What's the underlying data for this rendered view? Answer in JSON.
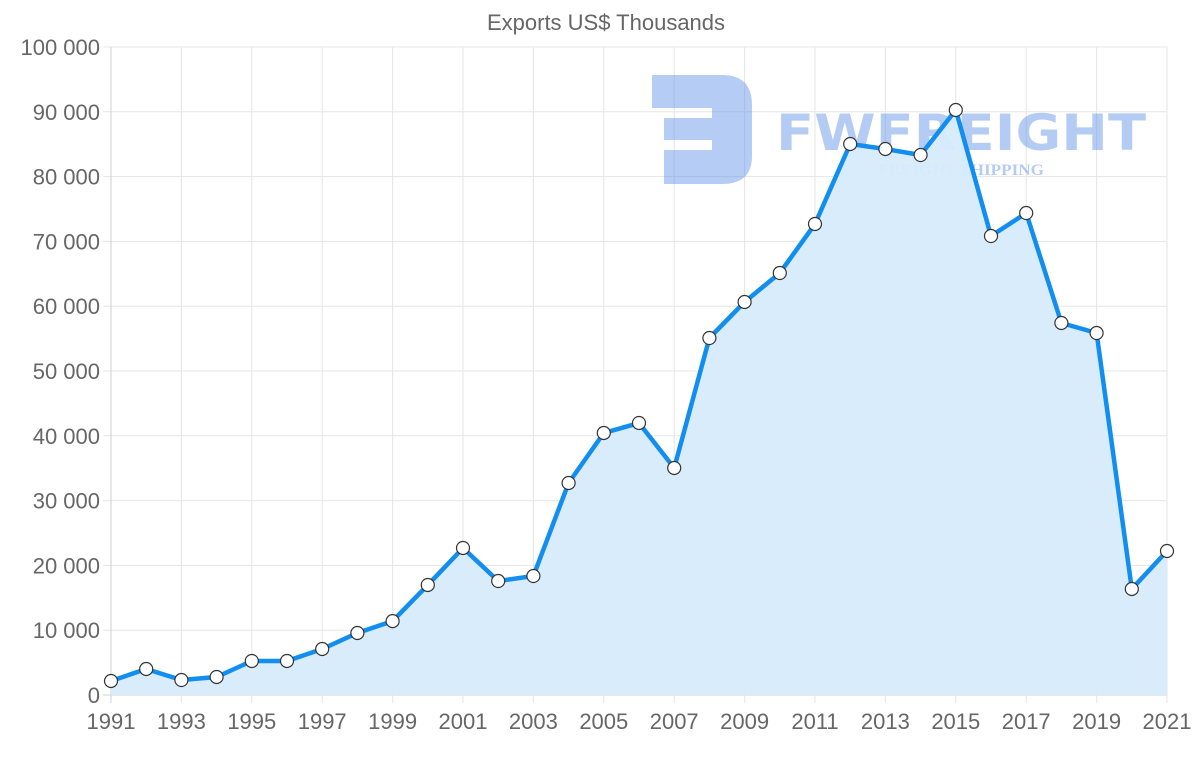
{
  "chart_data": {
    "type": "line",
    "title": "Exports US$ Thousands",
    "xlabel": "",
    "ylabel": "",
    "ylim": [
      0,
      100000
    ],
    "yticks": [
      "0",
      "10 000",
      "20 000",
      "30 000",
      "40 000",
      "50 000",
      "60 000",
      "70 000",
      "80 000",
      "90 000",
      "100 000"
    ],
    "xticks": [
      "1991",
      "1993",
      "1995",
      "1997",
      "1999",
      "2001",
      "2003",
      "2005",
      "2007",
      "2009",
      "2011",
      "2013",
      "2015",
      "2017",
      "2019",
      "2021"
    ],
    "grid": true,
    "legend": "none",
    "fill": true,
    "colors": {
      "line": "#118ef0",
      "fill": "#d7ebfc",
      "point_fill": "#ffffff",
      "point_stroke": "#333333",
      "text": "#666666",
      "grid": "#e5e5e5"
    },
    "x": [
      1991,
      1992,
      1993,
      1994,
      1995,
      1996,
      1997,
      1998,
      1999,
      2000,
      2001,
      2002,
      2003,
      2004,
      2005,
      2006,
      2007,
      2008,
      2009,
      2010,
      2011,
      2012,
      2013,
      2014,
      2015,
      2016,
      2017,
      2018,
      2019,
      2020,
      2021
    ],
    "series": [
      {
        "name": "Exports US$ Thousands",
        "values": [
          2160,
          4010,
          2310,
          2780,
          5250,
          5250,
          7100,
          9570,
          11400,
          16980,
          22690,
          17590,
          18360,
          32720,
          40430,
          41980,
          35030,
          55090,
          60650,
          65120,
          72690,
          85030,
          84260,
          83330,
          90280,
          70830,
          74380,
          57410,
          55860,
          16360,
          22220
        ]
      }
    ]
  },
  "watermark": {
    "brand": "FWFREIGHT",
    "tagline": "FREIGHT SHIPPING",
    "icon": "fwfreight-logo-icon"
  }
}
